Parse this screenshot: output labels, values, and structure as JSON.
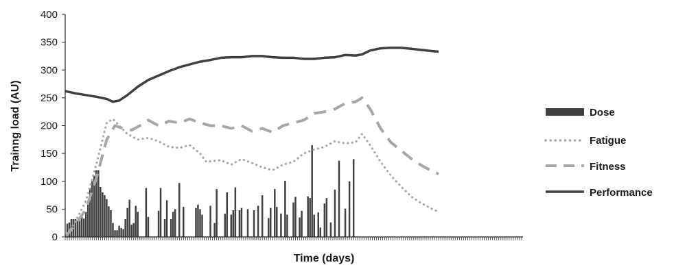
{
  "chart_data": {
    "type": "line",
    "title": "",
    "xlabel": "Time (days)",
    "ylabel": "Trainng load (AU)",
    "ylim": [
      0,
      400
    ],
    "yticks": [
      0,
      50,
      100,
      150,
      200,
      250,
      300,
      350,
      400
    ],
    "xlim": [
      0,
      220
    ],
    "grid": false,
    "legend_position": "right",
    "colors": {
      "dose": "#404040",
      "fatigue": "#a6a6a6",
      "fitness": "#a6a6a6",
      "performance": "#404040",
      "axis": "#222222"
    },
    "series": [
      {
        "name": "Dose",
        "style": "bar",
        "points": [
          [
            1,
            24
          ],
          [
            2,
            26
          ],
          [
            3,
            32
          ],
          [
            4,
            32
          ],
          [
            5,
            32
          ],
          [
            6,
            30
          ],
          [
            7,
            35
          ],
          [
            8,
            38
          ],
          [
            9,
            33
          ],
          [
            10,
            45
          ],
          [
            11,
            58
          ],
          [
            12,
            88
          ],
          [
            13,
            100
          ],
          [
            14,
            110
          ],
          [
            15,
            120
          ],
          [
            16,
            120
          ],
          [
            17,
            90
          ],
          [
            18,
            80
          ],
          [
            19,
            75
          ],
          [
            20,
            68
          ],
          [
            21,
            55
          ],
          [
            22,
            48
          ],
          [
            23,
            25
          ],
          [
            24,
            12
          ],
          [
            25,
            12
          ],
          [
            26,
            20
          ],
          [
            27,
            16
          ],
          [
            28,
            14
          ],
          [
            29,
            32
          ],
          [
            30,
            52
          ],
          [
            31,
            67
          ],
          [
            32,
            22
          ],
          [
            33,
            25
          ],
          [
            34,
            56
          ],
          [
            35,
            45
          ],
          [
            39,
            88
          ],
          [
            40,
            36
          ],
          [
            45,
            47
          ],
          [
            46,
            88
          ],
          [
            48,
            32
          ],
          [
            49,
            66
          ],
          [
            51,
            32
          ],
          [
            52,
            45
          ],
          [
            53,
            50
          ],
          [
            55,
            97
          ],
          [
            57,
            54
          ],
          [
            63,
            52
          ],
          [
            64,
            58
          ],
          [
            65,
            50
          ],
          [
            66,
            40
          ],
          [
            70,
            56
          ],
          [
            72,
            25
          ],
          [
            73,
            86
          ],
          [
            77,
            42
          ],
          [
            78,
            80
          ],
          [
            80,
            40
          ],
          [
            81,
            48
          ],
          [
            82,
            89
          ],
          [
            84,
            48
          ],
          [
            85,
            52
          ],
          [
            88,
            50
          ],
          [
            91,
            48
          ],
          [
            93,
            56
          ],
          [
            95,
            75
          ],
          [
            98,
            34
          ],
          [
            99,
            52
          ],
          [
            101,
            86
          ],
          [
            102,
            54
          ],
          [
            104,
            42
          ],
          [
            106,
            101
          ],
          [
            107,
            40
          ],
          [
            110,
            62
          ],
          [
            111,
            72
          ],
          [
            113,
            35
          ],
          [
            114,
            47
          ],
          [
            117,
            73
          ],
          [
            118,
            70
          ],
          [
            119,
            165
          ],
          [
            120,
            40
          ],
          [
            122,
            44
          ],
          [
            123,
            17
          ],
          [
            125,
            60
          ],
          [
            126,
            70
          ],
          [
            128,
            26
          ],
          [
            130,
            85
          ],
          [
            132,
            137
          ],
          [
            135,
            51
          ],
          [
            137,
            100
          ],
          [
            139,
            140
          ]
        ]
      },
      {
        "name": "Fatigue",
        "style": "dotted",
        "points": [
          [
            0,
            0
          ],
          [
            5,
            28
          ],
          [
            10,
            65
          ],
          [
            15,
            130
          ],
          [
            20,
            205
          ],
          [
            23,
            212
          ],
          [
            26,
            200
          ],
          [
            30,
            185
          ],
          [
            35,
            175
          ],
          [
            40,
            178
          ],
          [
            45,
            172
          ],
          [
            50,
            162
          ],
          [
            55,
            160
          ],
          [
            60,
            165
          ],
          [
            65,
            150
          ],
          [
            68,
            135
          ],
          [
            75,
            138
          ],
          [
            80,
            130
          ],
          [
            85,
            140
          ],
          [
            90,
            133
          ],
          [
            95,
            125
          ],
          [
            100,
            120
          ],
          [
            105,
            130
          ],
          [
            110,
            135
          ],
          [
            115,
            150
          ],
          [
            120,
            157
          ],
          [
            125,
            162
          ],
          [
            130,
            172
          ],
          [
            135,
            168
          ],
          [
            140,
            170
          ],
          [
            143,
            185
          ],
          [
            147,
            165
          ],
          [
            152,
            135
          ],
          [
            157,
            110
          ],
          [
            162,
            90
          ],
          [
            167,
            72
          ],
          [
            172,
            60
          ],
          [
            177,
            50
          ],
          [
            180,
            45
          ]
        ]
      },
      {
        "name": "Fitness",
        "style": "dashed",
        "points": [
          [
            0,
            0
          ],
          [
            5,
            22
          ],
          [
            10,
            50
          ],
          [
            15,
            105
          ],
          [
            20,
            175
          ],
          [
            24,
            200
          ],
          [
            28,
            195
          ],
          [
            32,
            192
          ],
          [
            36,
            200
          ],
          [
            40,
            210
          ],
          [
            45,
            200
          ],
          [
            50,
            208
          ],
          [
            55,
            205
          ],
          [
            60,
            212
          ],
          [
            65,
            205
          ],
          [
            70,
            200
          ],
          [
            75,
            200
          ],
          [
            80,
            195
          ],
          [
            85,
            200
          ],
          [
            90,
            190
          ],
          [
            95,
            195
          ],
          [
            100,
            188
          ],
          [
            105,
            200
          ],
          [
            110,
            205
          ],
          [
            115,
            210
          ],
          [
            120,
            222
          ],
          [
            125,
            225
          ],
          [
            130,
            230
          ],
          [
            135,
            240
          ],
          [
            140,
            243
          ],
          [
            143,
            250
          ],
          [
            147,
            230
          ],
          [
            152,
            195
          ],
          [
            157,
            170
          ],
          [
            162,
            155
          ],
          [
            167,
            140
          ],
          [
            172,
            128
          ],
          [
            177,
            118
          ],
          [
            180,
            113
          ]
        ]
      },
      {
        "name": "Performance",
        "style": "solid",
        "points": [
          [
            0,
            262
          ],
          [
            5,
            258
          ],
          [
            10,
            255
          ],
          [
            15,
            252
          ],
          [
            20,
            248
          ],
          [
            23,
            243
          ],
          [
            26,
            245
          ],
          [
            30,
            255
          ],
          [
            35,
            270
          ],
          [
            40,
            282
          ],
          [
            45,
            290
          ],
          [
            50,
            298
          ],
          [
            55,
            305
          ],
          [
            60,
            310
          ],
          [
            65,
            315
          ],
          [
            70,
            318
          ],
          [
            75,
            322
          ],
          [
            80,
            323
          ],
          [
            85,
            323
          ],
          [
            90,
            325
          ],
          [
            95,
            325
          ],
          [
            100,
            323
          ],
          [
            105,
            322
          ],
          [
            110,
            322
          ],
          [
            115,
            320
          ],
          [
            120,
            320
          ],
          [
            125,
            322
          ],
          [
            130,
            323
          ],
          [
            135,
            327
          ],
          [
            140,
            326
          ],
          [
            143,
            328
          ],
          [
            147,
            335
          ],
          [
            152,
            339
          ],
          [
            157,
            340
          ],
          [
            162,
            340
          ],
          [
            167,
            338
          ],
          [
            172,
            336
          ],
          [
            177,
            334
          ],
          [
            180,
            333
          ]
        ]
      }
    ]
  }
}
